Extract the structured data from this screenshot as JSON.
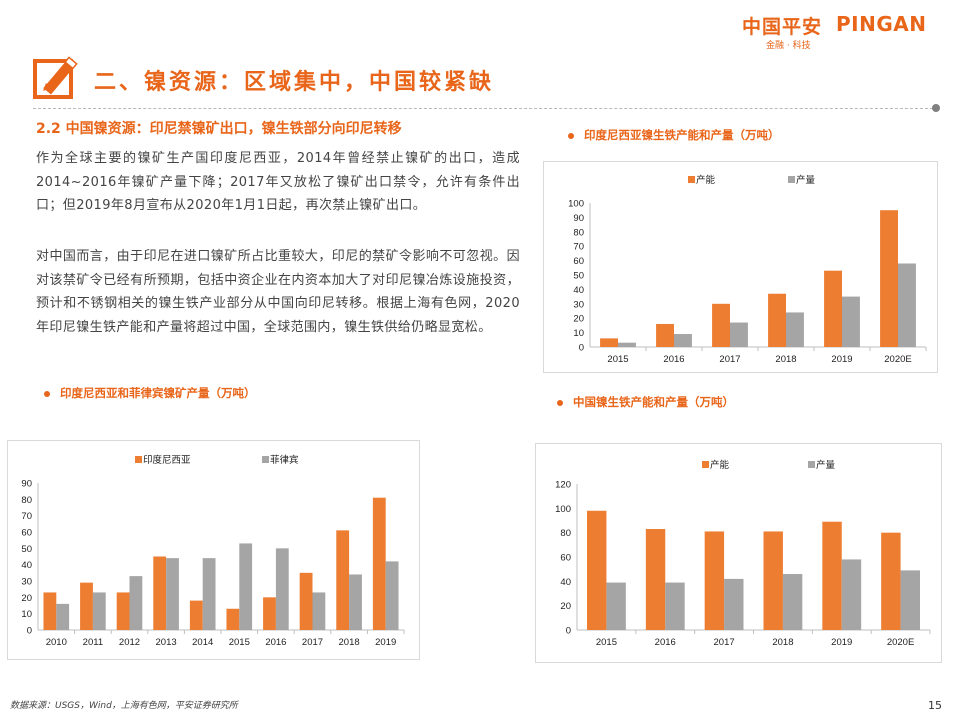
{
  "header": {
    "logo_cn": "中国平安",
    "logo_en": "PINGAN",
    "logo_sub": "金融 · 科技"
  },
  "section": {
    "title": "二、镍资源：区域集中，中国较紧缺",
    "icon": "pencil-edit-icon"
  },
  "content": {
    "heading": "2.2 中国镍资源：印尼禁镍矿出口，镍生铁部分向印尼转移",
    "para1": "作为全球主要的镍矿生产国印度尼西亚，2014年曾经禁止镍矿的出口，造成2014~2016年镍矿产量下降；2017年又放松了镍矿出口禁令，允许有条件出口；但2019年8月宣布从2020年1月1日起，再次禁止镍矿出口。",
    "para2": "对中国而言，由于印尼在进口镍矿所占比重较大，印尼的禁矿令影响不可忽视。因对该禁矿令已经有所预期，包括中资企业在内资本加大了对印尼镍冶炼设施投资，预计和不锈钢相关的镍生铁产业部分从中国向印尼转移。根据上海有色网，2020年印尼镍生铁产能和产量将超过中国，全球范围内，镍生铁供给仍略显宽松。"
  },
  "colors": {
    "accent": "#e8651a",
    "series_orange": "#ed7d31",
    "series_gray": "#a5a5a5"
  },
  "chart_data": [
    {
      "id": "indonesia-npi",
      "type": "bar",
      "title": "印度尼西亚镍生铁产能和产量（万吨）",
      "categories": [
        "2015",
        "2016",
        "2017",
        "2018",
        "2019",
        "2020E"
      ],
      "series": [
        {
          "name": "产能",
          "values": [
            6,
            16,
            30,
            37,
            53,
            95
          ]
        },
        {
          "name": "产量",
          "values": [
            3,
            9,
            17,
            24,
            35,
            58
          ]
        }
      ],
      "ylim": [
        0,
        100
      ],
      "yticks": [
        0,
        10,
        20,
        30,
        40,
        50,
        60,
        70,
        80,
        90,
        100
      ],
      "legend": "top"
    },
    {
      "id": "ore-production",
      "type": "bar",
      "title": "印度尼西亚和菲律宾镍矿产量（万吨）",
      "categories": [
        "2010",
        "2011",
        "2012",
        "2013",
        "2014",
        "2015",
        "2016",
        "2017",
        "2018",
        "2019"
      ],
      "series": [
        {
          "name": "印度尼西亚",
          "values": [
            23,
            29,
            23,
            45,
            18,
            13,
            20,
            35,
            61,
            81
          ]
        },
        {
          "name": "菲律宾",
          "values": [
            16,
            23,
            33,
            44,
            44,
            53,
            50,
            23,
            34,
            42
          ]
        }
      ],
      "ylim": [
        0,
        90
      ],
      "yticks": [
        0,
        10,
        20,
        30,
        40,
        50,
        60,
        70,
        80,
        90
      ],
      "legend": "top"
    },
    {
      "id": "china-npi",
      "type": "bar",
      "title": "中国镍生铁产能和产量（万吨）",
      "categories": [
        "2015",
        "2016",
        "2017",
        "2018",
        "2019",
        "2020E"
      ],
      "series": [
        {
          "name": "产能",
          "values": [
            98,
            83,
            81,
            81,
            89,
            80
          ]
        },
        {
          "name": "产量",
          "values": [
            39,
            39,
            42,
            46,
            58,
            49
          ]
        }
      ],
      "ylim": [
        0,
        120
      ],
      "yticks": [
        0,
        20,
        40,
        60,
        80,
        100,
        120
      ],
      "legend": "top"
    }
  ],
  "footer": {
    "source": "数据来源：USGS，Wind，上海有色网，平安证券研究所",
    "page": "15"
  }
}
